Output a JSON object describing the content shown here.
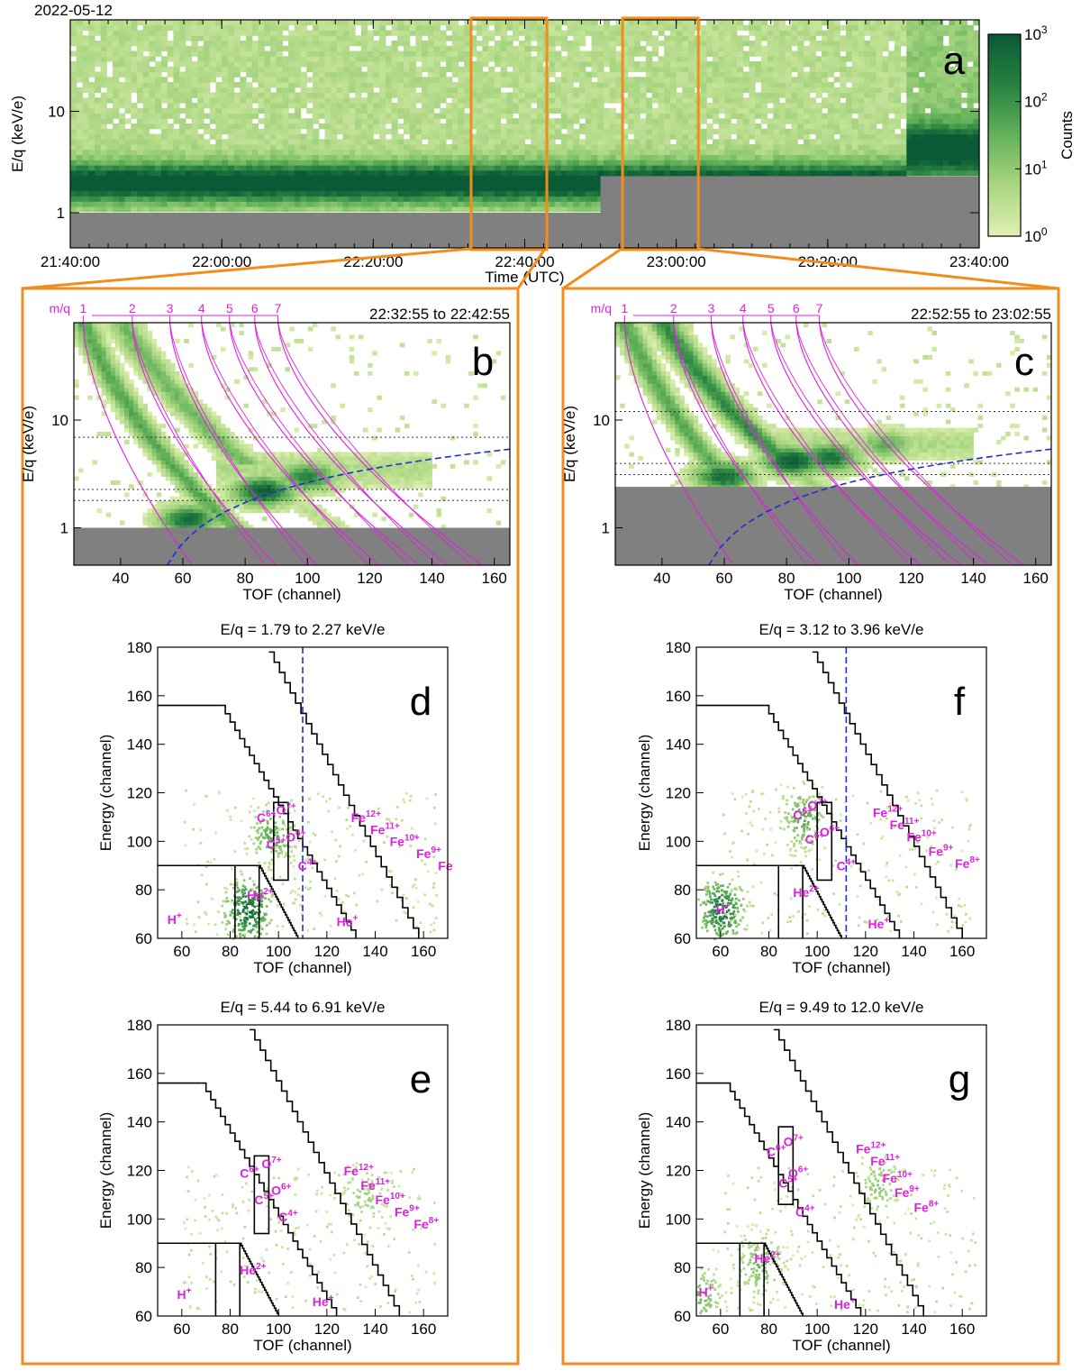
{
  "colors": {
    "accent": "#f28c1a",
    "mq_curves": "#e020e0",
    "threshold": "#2030d0",
    "no_data": "#808080",
    "cmap_low": "#dff0b0",
    "cmap_high": "#0b5a37"
  },
  "figure": {
    "date": "2022-05-12"
  },
  "chart_data": [
    {
      "id": "a",
      "type": "heatmap",
      "panel_label": "a",
      "ylabel": "E/q (keV/e)",
      "xlabel": "Time (UTC)",
      "x_ticks": [
        "21:40:00",
        "22:00:00",
        "22:20:00",
        "22:40:00",
        "23:00:00",
        "23:20:00",
        "23:40:00"
      ],
      "xlim_min": [
        0,
        120
      ],
      "y_ticks": [
        "1",
        "10"
      ],
      "ylog": true,
      "ylim": [
        0.45,
        80
      ],
      "colorbar": {
        "label": "Counts",
        "ticks": [
          "10^0",
          "10^1",
          "10^2",
          "10^3"
        ],
        "range": [
          1,
          1000
        ]
      },
      "highlight_windows": [
        {
          "start": "22:32:55",
          "end": "22:42:55"
        },
        {
          "start": "22:52:55",
          "end": "23:02:55"
        }
      ],
      "features": {
        "band_center_before_22_50": 2.0,
        "band_center_after_22_50": 4.0,
        "cutoff_before": 1.0,
        "cutoff_after": 2.3,
        "jump_time": "22:50:00"
      }
    },
    {
      "id": "b",
      "type": "heatmap",
      "panel_label": "b",
      "time_range": "22:32:55 to 22:42:55",
      "ylabel": "E/q (keV/e)",
      "xlabel": "TOF (channel)",
      "x_ticks": [
        "40",
        "60",
        "80",
        "100",
        "120",
        "140",
        "160"
      ],
      "xlim": [
        25,
        165
      ],
      "y_ticks": [
        "1",
        "10"
      ],
      "ylog": true,
      "ylim": [
        0.45,
        80
      ],
      "mq_label": "m/q",
      "mq_values": [
        "1",
        "2",
        "3",
        "4",
        "5",
        "6",
        "7"
      ],
      "dotted_levels": [
        1.79,
        2.27,
        6.91
      ],
      "cutoff": 1.0,
      "blobs": [
        {
          "tof": 62,
          "eq": 1.2,
          "strength": 0.9
        },
        {
          "tof": 86,
          "eq": 2.2,
          "strength": 1.0
        },
        {
          "tof": 100,
          "eq": 3.0,
          "strength": 0.75
        }
      ]
    },
    {
      "id": "c",
      "type": "heatmap",
      "panel_label": "c",
      "time_range": "22:52:55 to 23:02:55",
      "ylabel": "E/q (keV/e)",
      "xlabel": "TOF (channel)",
      "x_ticks": [
        "40",
        "60",
        "80",
        "100",
        "120",
        "140",
        "160"
      ],
      "xlim": [
        25,
        165
      ],
      "y_ticks": [
        "1",
        "10"
      ],
      "ylog": true,
      "ylim": [
        0.45,
        80
      ],
      "mq_label": "m/q",
      "mq_values": [
        "1",
        "2",
        "3",
        "4",
        "5",
        "6",
        "7"
      ],
      "dotted_levels": [
        3.12,
        3.96,
        12.0
      ],
      "cutoff": 2.4,
      "blobs": [
        {
          "tof": 60,
          "eq": 3.0,
          "strength": 0.9
        },
        {
          "tof": 82,
          "eq": 4.2,
          "strength": 1.0
        },
        {
          "tof": 94,
          "eq": 4.5,
          "strength": 0.85
        },
        {
          "tof": 112,
          "eq": 6.0,
          "strength": 0.5
        }
      ]
    },
    {
      "id": "d",
      "type": "heatmap",
      "panel_label": "d",
      "title": "E/q = 1.79 to 2.27 keV/e",
      "xlabel": "TOF (channel)",
      "ylabel": "Energy (channel)",
      "x_ticks": [
        "60",
        "80",
        "100",
        "120",
        "140",
        "160"
      ],
      "xlim": [
        50,
        170
      ],
      "y_ticks": [
        "60",
        "80",
        "100",
        "120",
        "140",
        "160",
        "180"
      ],
      "ylim": [
        60,
        180
      ],
      "threshold_tof": 110,
      "ion_labels": [
        {
          "ion": "H",
          "charge": "+",
          "tof": 54,
          "en": 66
        },
        {
          "ion": "He",
          "charge": "2+",
          "tof": 87,
          "en": 76
        },
        {
          "ion": "C",
          "charge": "6+",
          "tof": 91,
          "en": 108
        },
        {
          "ion": "O",
          "charge": "7+",
          "tof": 99,
          "en": 111
        },
        {
          "ion": "C",
          "charge": "5+",
          "tof": 95,
          "en": 97
        },
        {
          "ion": "O",
          "charge": "6+",
          "tof": 103,
          "en": 100
        },
        {
          "ion": "C",
          "charge": "4+",
          "tof": 108,
          "en": 88
        },
        {
          "ion": "He",
          "charge": "+",
          "tof": 124,
          "en": 65
        },
        {
          "ion": "Fe",
          "charge": "12+",
          "tof": 130,
          "en": 108
        },
        {
          "ion": "Fe",
          "charge": "11+",
          "tof": 138,
          "en": 103
        },
        {
          "ion": "Fe",
          "charge": "10+",
          "tof": 146,
          "en": 98
        },
        {
          "ion": "Fe",
          "charge": "9+",
          "tof": 157,
          "en": 93
        },
        {
          "ion": "Fe",
          "charge": "",
          "tof": 166,
          "en": 88
        }
      ],
      "blobs": [
        {
          "tof": 87,
          "en": 72,
          "strength": 1.0
        },
        {
          "tof": 97,
          "en": 103,
          "strength": 0.6
        }
      ]
    },
    {
      "id": "e",
      "type": "heatmap",
      "panel_label": "e",
      "title": "E/q = 5.44 to 6.91 keV/e",
      "xlabel": "TOF (channel)",
      "ylabel": "Energy (channel)",
      "x_ticks": [
        "60",
        "80",
        "100",
        "120",
        "140",
        "160"
      ],
      "xlim": [
        50,
        170
      ],
      "y_ticks": [
        "60",
        "80",
        "100",
        "120",
        "140",
        "160",
        "180"
      ],
      "ylim": [
        60,
        180
      ],
      "ion_labels": [
        {
          "ion": "H",
          "charge": "+",
          "tof": 58,
          "en": 67
        },
        {
          "ion": "He",
          "charge": "2+",
          "tof": 84,
          "en": 77
        },
        {
          "ion": "C",
          "charge": "6+",
          "tof": 84,
          "en": 117
        },
        {
          "ion": "O",
          "charge": "7+",
          "tof": 93,
          "en": 121
        },
        {
          "ion": "C",
          "charge": "5+",
          "tof": 90,
          "en": 106
        },
        {
          "ion": "O",
          "charge": "6+",
          "tof": 97,
          "en": 110
        },
        {
          "ion": "C",
          "charge": "4+",
          "tof": 100,
          "en": 99
        },
        {
          "ion": "He",
          "charge": "+",
          "tof": 114,
          "en": 64
        },
        {
          "ion": "Fe",
          "charge": "12+",
          "tof": 127,
          "en": 118
        },
        {
          "ion": "Fe",
          "charge": "11+",
          "tof": 134,
          "en": 112
        },
        {
          "ion": "Fe",
          "charge": "10+",
          "tof": 140,
          "en": 106
        },
        {
          "ion": "Fe",
          "charge": "9+",
          "tof": 148,
          "en": 101
        },
        {
          "ion": "Fe",
          "charge": "8+",
          "tof": 156,
          "en": 96
        }
      ],
      "blobs": [
        {
          "tof": 135,
          "en": 110,
          "strength": 0.35
        }
      ]
    },
    {
      "id": "f",
      "type": "heatmap",
      "panel_label": "f",
      "title": "E/q = 3.12 to 3.96 keV/e",
      "xlabel": "TOF (channel)",
      "ylabel": "Energy (channel)",
      "x_ticks": [
        "60",
        "80",
        "100",
        "120",
        "140",
        "160"
      ],
      "xlim": [
        50,
        170
      ],
      "y_ticks": [
        "60",
        "80",
        "100",
        "120",
        "140",
        "160",
        "180"
      ],
      "ylim": [
        60,
        180
      ],
      "threshold_tof": 112,
      "ion_labels": [
        {
          "ion": "H",
          "charge": "+",
          "tof": 58,
          "en": 70
        },
        {
          "ion": "He",
          "charge": "2+",
          "tof": 90,
          "en": 77
        },
        {
          "ion": "C",
          "charge": "6+",
          "tof": 90,
          "en": 109
        },
        {
          "ion": "O",
          "charge": "7+",
          "tof": 96,
          "en": 113
        },
        {
          "ion": "C",
          "charge": "5+",
          "tof": 95,
          "en": 99
        },
        {
          "ion": "O",
          "charge": "6+",
          "tof": 101,
          "en": 102
        },
        {
          "ion": "C",
          "charge": "4+",
          "tof": 108,
          "en": 88
        },
        {
          "ion": "He",
          "charge": "+",
          "tof": 121,
          "en": 64
        },
        {
          "ion": "Fe",
          "charge": "12+",
          "tof": 123,
          "en": 110
        },
        {
          "ion": "Fe",
          "charge": "11+",
          "tof": 130,
          "en": 105
        },
        {
          "ion": "Fe",
          "charge": "10+",
          "tof": 137,
          "en": 100
        },
        {
          "ion": "Fe",
          "charge": "9+",
          "tof": 146,
          "en": 94
        },
        {
          "ion": "Fe",
          "charge": "8+",
          "tof": 157,
          "en": 89
        }
      ],
      "blobs": [
        {
          "tof": 60,
          "en": 72,
          "strength": 0.95
        },
        {
          "tof": 94,
          "en": 110,
          "strength": 0.6
        }
      ]
    },
    {
      "id": "g",
      "type": "heatmap",
      "panel_label": "g",
      "title": "E/q = 9.49 to 12.0 keV/e",
      "xlabel": "TOF (channel)",
      "ylabel": "Energy (channel)",
      "x_ticks": [
        "60",
        "80",
        "100",
        "120",
        "140",
        "160"
      ],
      "xlim": [
        50,
        170
      ],
      "y_ticks": [
        "60",
        "80",
        "100",
        "120",
        "140",
        "160",
        "180"
      ],
      "ylim": [
        60,
        180
      ],
      "ion_labels": [
        {
          "ion": "H",
          "charge": "+",
          "tof": 51,
          "en": 68
        },
        {
          "ion": "He",
          "charge": "2+",
          "tof": 74,
          "en": 82
        },
        {
          "ion": "C",
          "charge": "6+",
          "tof": 79,
          "en": 126
        },
        {
          "ion": "O",
          "charge": "7+",
          "tof": 86,
          "en": 130
        },
        {
          "ion": "C",
          "charge": "5+",
          "tof": 84,
          "en": 113
        },
        {
          "ion": "O",
          "charge": "6+",
          "tof": 88,
          "en": 117
        },
        {
          "ion": "C",
          "charge": "4+",
          "tof": 91,
          "en": 101
        },
        {
          "ion": "He",
          "charge": "+",
          "tof": 107,
          "en": 63
        },
        {
          "ion": "Fe",
          "charge": "12+",
          "tof": 116,
          "en": 127
        },
        {
          "ion": "Fe",
          "charge": "11+",
          "tof": 122,
          "en": 122
        },
        {
          "ion": "Fe",
          "charge": "10+",
          "tof": 127,
          "en": 115
        },
        {
          "ion": "Fe",
          "charge": "9+",
          "tof": 132,
          "en": 109
        },
        {
          "ion": "Fe",
          "charge": "8+",
          "tof": 140,
          "en": 103
        }
      ],
      "blobs": [
        {
          "tof": 125,
          "en": 115,
          "strength": 0.4
        },
        {
          "tof": 76,
          "en": 82,
          "strength": 0.5
        },
        {
          "tof": 51,
          "en": 68,
          "strength": 0.5
        }
      ]
    }
  ]
}
